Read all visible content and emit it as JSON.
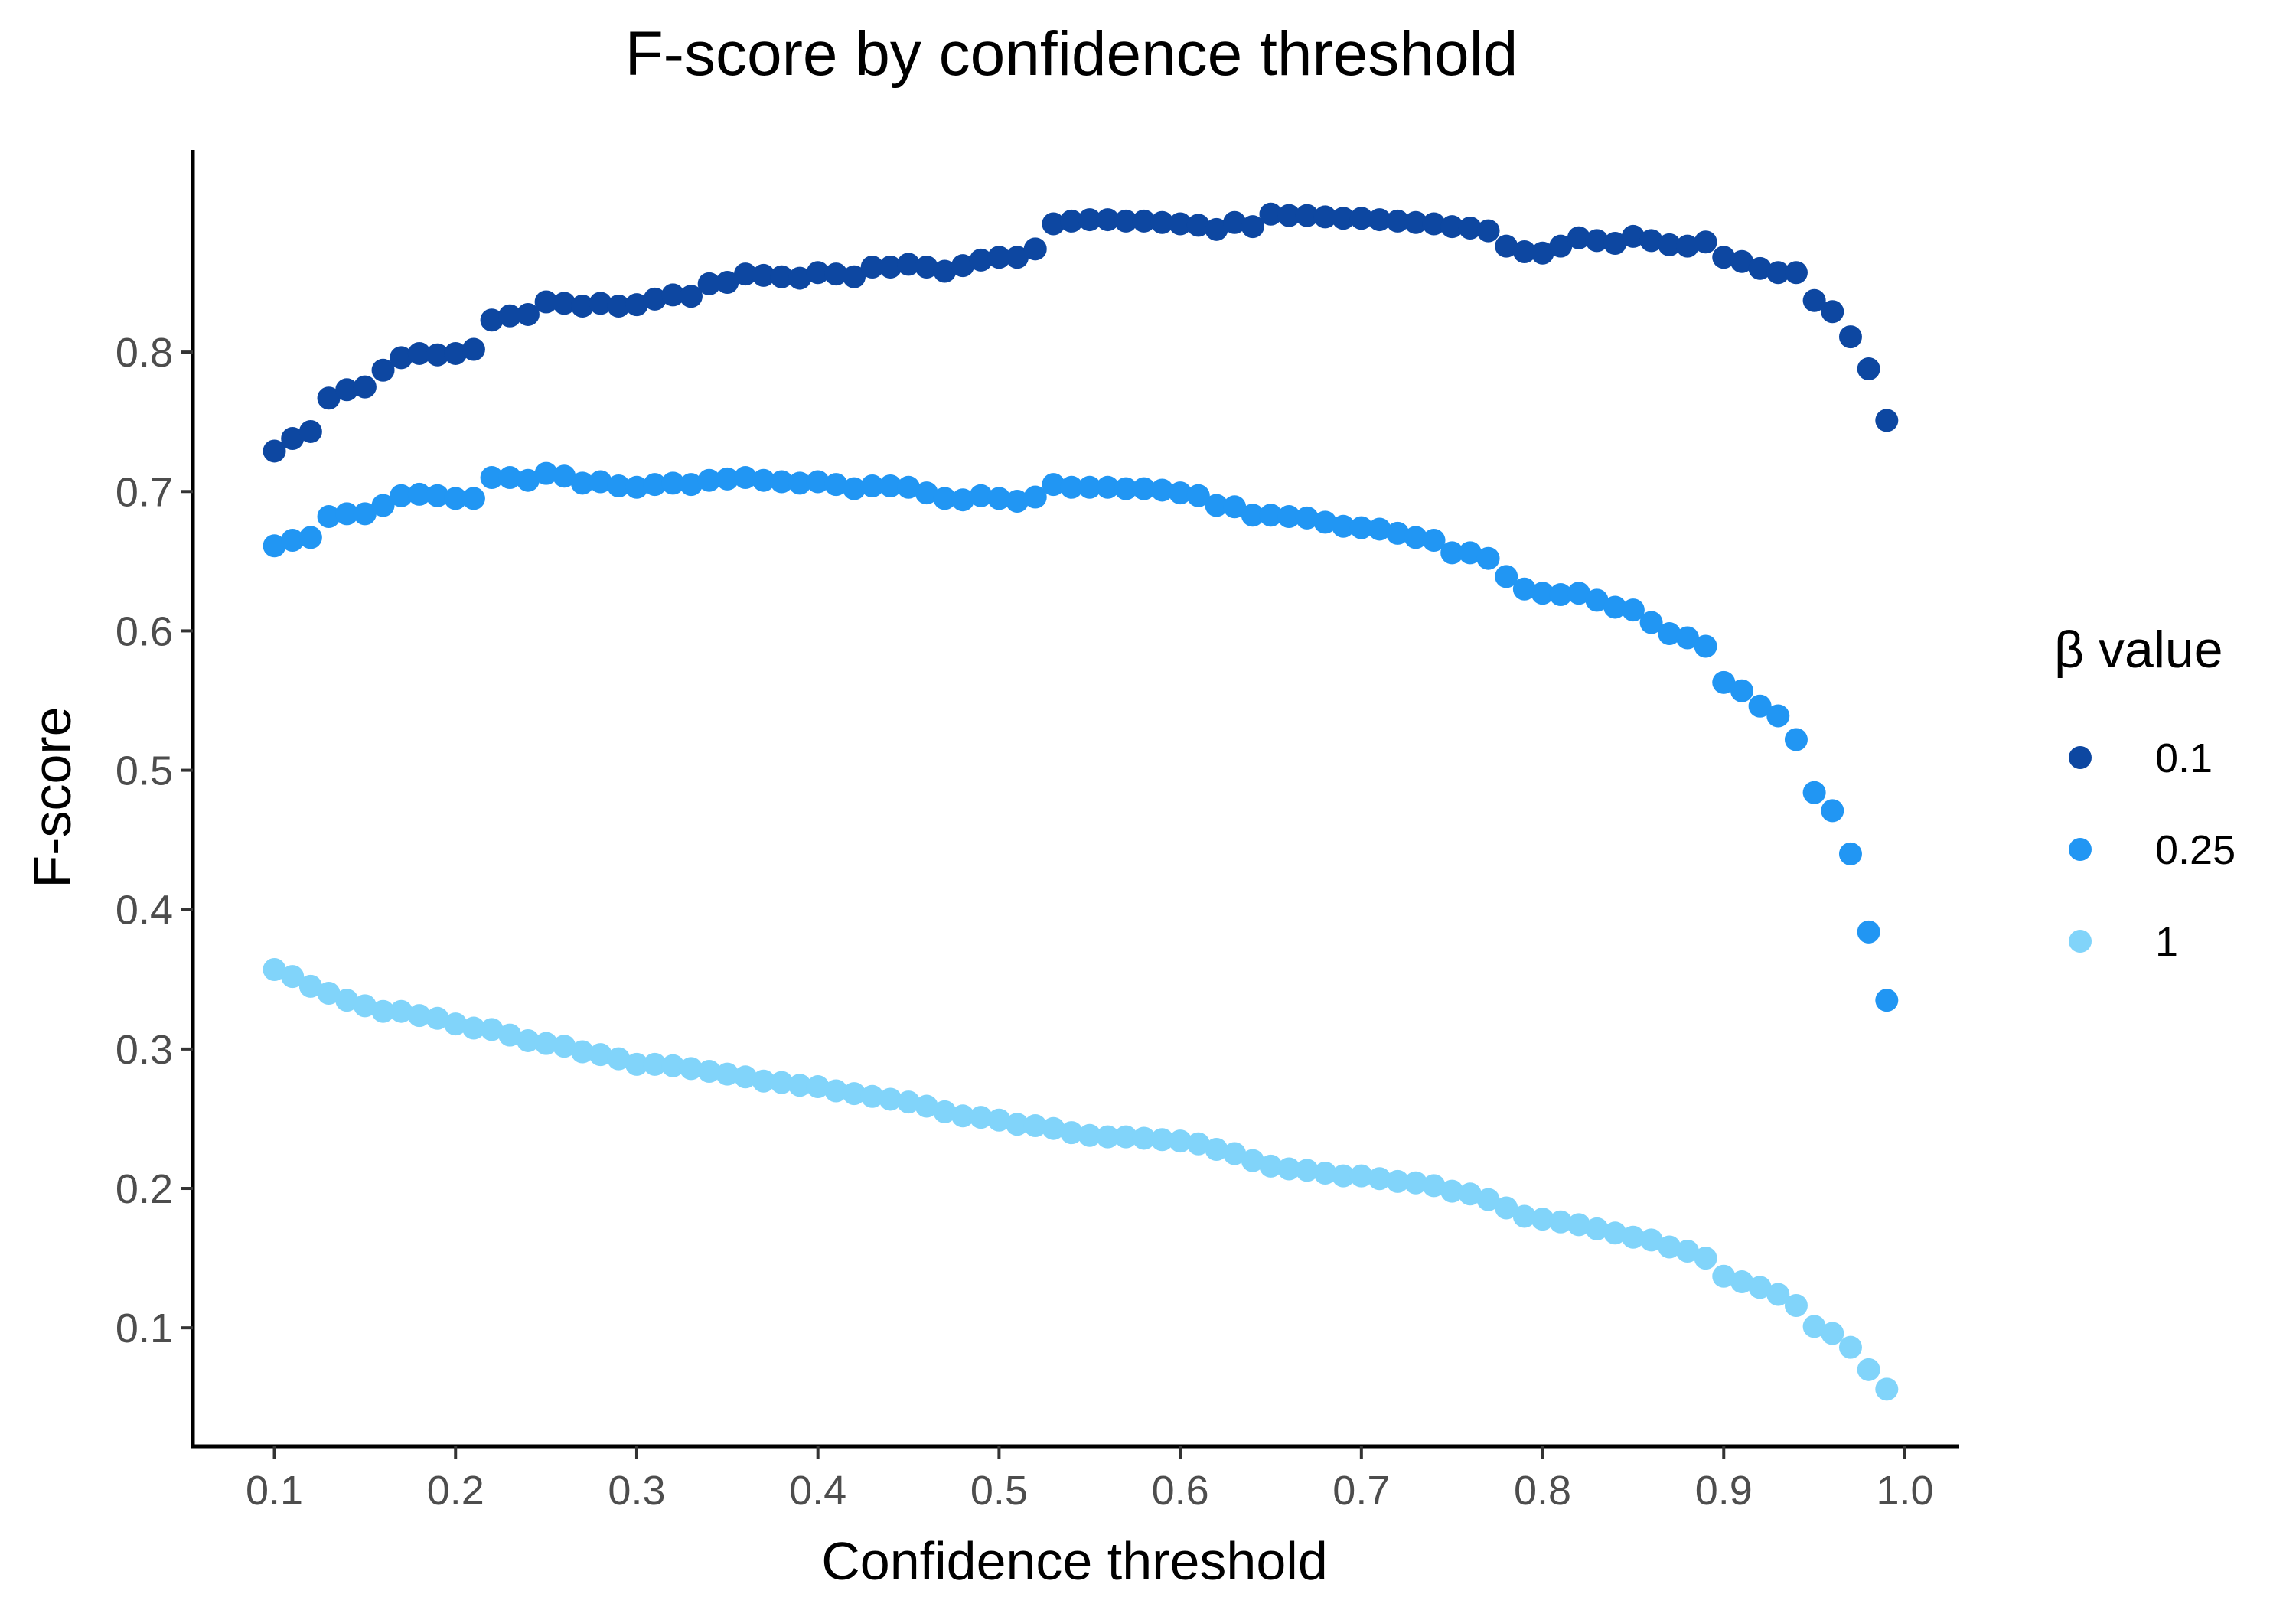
{
  "chart_data": {
    "type": "scatter",
    "title": "F-score by confidence threshold",
    "xlabel": "Confidence threshold",
    "ylabel": "F-score",
    "xlim": [
      0.055,
      1.03
    ],
    "ylim": [
      0.015,
      0.945
    ],
    "x_ticks": [
      0.1,
      0.2,
      0.3,
      0.4,
      0.5,
      0.6,
      0.7,
      0.8,
      0.9,
      1.0
    ],
    "x_tick_labels": [
      "0.1",
      "0.2",
      "0.3",
      "0.4",
      "0.5",
      "0.6",
      "0.7",
      "0.8",
      "0.9",
      "1.0"
    ],
    "y_ticks": [
      0.1,
      0.2,
      0.3,
      0.4,
      0.5,
      0.6,
      0.7,
      0.8
    ],
    "y_tick_labels": [
      "0.1",
      "0.2",
      "0.3",
      "0.4",
      "0.5",
      "0.6",
      "0.7",
      "0.8"
    ],
    "grid": false,
    "legend": {
      "title": "β value",
      "position": "right"
    },
    "x": [
      0.1,
      0.11,
      0.12,
      0.13,
      0.14,
      0.15,
      0.16,
      0.17,
      0.18,
      0.19,
      0.2,
      0.21,
      0.22,
      0.23,
      0.24,
      0.25,
      0.26,
      0.27,
      0.28,
      0.29,
      0.3,
      0.31,
      0.32,
      0.33,
      0.34,
      0.35,
      0.36,
      0.37,
      0.38,
      0.39,
      0.4,
      0.41,
      0.42,
      0.43,
      0.44,
      0.45,
      0.46,
      0.47,
      0.48,
      0.49,
      0.5,
      0.51,
      0.52,
      0.53,
      0.54,
      0.55,
      0.56,
      0.57,
      0.58,
      0.59,
      0.6,
      0.61,
      0.62,
      0.63,
      0.64,
      0.65,
      0.66,
      0.67,
      0.68,
      0.69,
      0.7,
      0.71,
      0.72,
      0.73,
      0.74,
      0.75,
      0.76,
      0.77,
      0.78,
      0.79,
      0.8,
      0.81,
      0.82,
      0.83,
      0.84,
      0.85,
      0.86,
      0.87,
      0.88,
      0.89,
      0.9,
      0.91,
      0.92,
      0.93,
      0.94,
      0.95,
      0.96,
      0.97,
      0.98,
      0.99
    ],
    "series": [
      {
        "name": "0.1",
        "color": "#0d47a1",
        "values": [
          0.729,
          0.738,
          0.743,
          0.767,
          0.773,
          0.775,
          0.787,
          0.796,
          0.799,
          0.798,
          0.799,
          0.802,
          0.823,
          0.826,
          0.827,
          0.836,
          0.835,
          0.833,
          0.835,
          0.833,
          0.834,
          0.838,
          0.841,
          0.84,
          0.849,
          0.85,
          0.856,
          0.855,
          0.854,
          0.853,
          0.857,
          0.856,
          0.854,
          0.861,
          0.861,
          0.863,
          0.861,
          0.858,
          0.862,
          0.866,
          0.868,
          0.868,
          0.874,
          0.892,
          0.894,
          0.895,
          0.895,
          0.894,
          0.894,
          0.893,
          0.892,
          0.891,
          0.888,
          0.893,
          0.89,
          0.899,
          0.898,
          0.898,
          0.897,
          0.896,
          0.896,
          0.895,
          0.894,
          0.893,
          0.892,
          0.89,
          0.889,
          0.887,
          0.876,
          0.872,
          0.871,
          0.876,
          0.882,
          0.88,
          0.878,
          0.883,
          0.88,
          0.877,
          0.876,
          0.879,
          0.868,
          0.865,
          0.86,
          0.857,
          0.857,
          0.837,
          0.829,
          0.811,
          0.788,
          0.751
        ]
      },
      {
        "name": "0.25",
        "color": "#2196f3",
        "values": [
          0.661,
          0.665,
          0.667,
          0.682,
          0.684,
          0.684,
          0.69,
          0.697,
          0.698,
          0.697,
          0.695,
          0.695,
          0.71,
          0.71,
          0.708,
          0.713,
          0.711,
          0.706,
          0.707,
          0.704,
          0.703,
          0.705,
          0.706,
          0.705,
          0.708,
          0.709,
          0.71,
          0.708,
          0.707,
          0.706,
          0.707,
          0.705,
          0.702,
          0.704,
          0.704,
          0.703,
          0.699,
          0.695,
          0.694,
          0.697,
          0.695,
          0.693,
          0.696,
          0.705,
          0.703,
          0.703,
          0.703,
          0.702,
          0.702,
          0.701,
          0.699,
          0.697,
          0.69,
          0.689,
          0.683,
          0.683,
          0.682,
          0.681,
          0.678,
          0.675,
          0.674,
          0.673,
          0.67,
          0.667,
          0.665,
          0.656,
          0.656,
          0.652,
          0.639,
          0.63,
          0.627,
          0.626,
          0.627,
          0.622,
          0.617,
          0.615,
          0.606,
          0.598,
          0.595,
          0.589,
          0.563,
          0.557,
          0.546,
          0.539,
          0.522,
          0.484,
          0.471,
          0.44,
          0.384,
          0.335
        ]
      },
      {
        "name": "1",
        "color": "#81d4fa",
        "values": [
          0.357,
          0.352,
          0.345,
          0.34,
          0.335,
          0.331,
          0.327,
          0.327,
          0.324,
          0.322,
          0.318,
          0.315,
          0.314,
          0.31,
          0.306,
          0.304,
          0.302,
          0.298,
          0.296,
          0.293,
          0.289,
          0.289,
          0.288,
          0.286,
          0.284,
          0.282,
          0.28,
          0.277,
          0.276,
          0.274,
          0.273,
          0.27,
          0.268,
          0.266,
          0.264,
          0.262,
          0.259,
          0.255,
          0.252,
          0.251,
          0.249,
          0.246,
          0.245,
          0.243,
          0.24,
          0.238,
          0.237,
          0.237,
          0.236,
          0.235,
          0.234,
          0.232,
          0.228,
          0.225,
          0.22,
          0.216,
          0.214,
          0.213,
          0.211,
          0.209,
          0.209,
          0.207,
          0.205,
          0.204,
          0.202,
          0.198,
          0.196,
          0.192,
          0.186,
          0.18,
          0.178,
          0.176,
          0.174,
          0.171,
          0.168,
          0.165,
          0.163,
          0.158,
          0.155,
          0.15,
          0.137,
          0.133,
          0.129,
          0.124,
          0.116,
          0.101,
          0.096,
          0.086,
          0.07,
          0.056
        ]
      }
    ]
  }
}
